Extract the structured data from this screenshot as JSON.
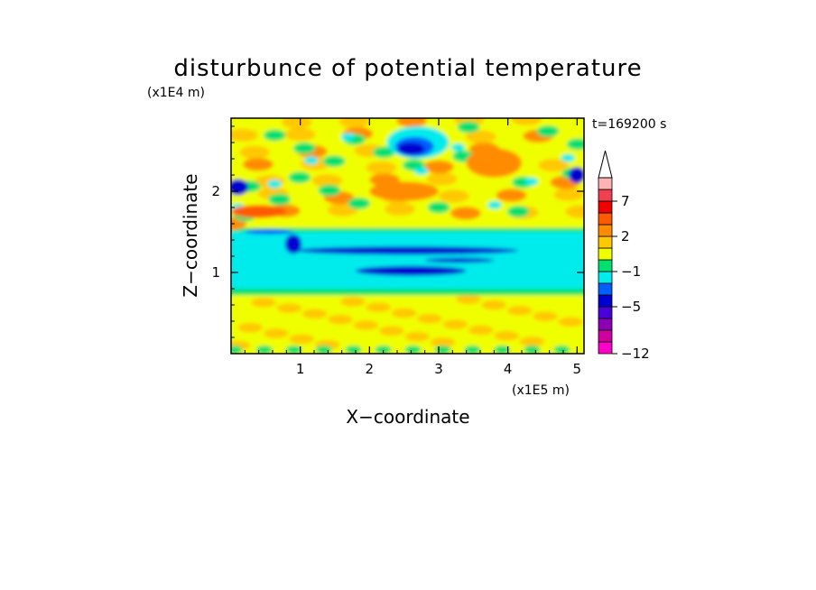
{
  "chart_data": {
    "type": "heatmap",
    "title": "disturbunce of potential temperature",
    "time_label": "t=169200 s",
    "x_axis": {
      "label": "X−coordinate",
      "unit": "(x1E5 m)",
      "range": [
        0,
        5.1
      ],
      "ticks": [
        1,
        2,
        3,
        4,
        5
      ],
      "tick_labels": [
        "1",
        "2",
        "3",
        "4",
        "5"
      ]
    },
    "y_axis": {
      "label": "Z−coordinate",
      "unit": "(x1E4 m)",
      "range": [
        0,
        2.9
      ],
      "ticks": [
        1,
        2
      ],
      "tick_labels": [
        "1",
        "2"
      ]
    },
    "colorbar": {
      "labels": [
        "7",
        "2",
        "−1",
        "−5",
        "−12"
      ],
      "colors": [
        "#ff00c8",
        "#d000a0",
        "#8c00b4",
        "#4a00d8",
        "#0000d0",
        "#0060ff",
        "#00ecec",
        "#00e070",
        "#f0ff00",
        "#ffc800",
        "#ff8c00",
        "#ff5a00",
        "#f00000",
        "#f04050",
        "#ffb4b4",
        "#ffffff"
      ],
      "extend": "max-arrow"
    },
    "field_description": [
      {
        "z_range": [
          0,
          0.8
        ],
        "dominant": "yellow/orange (+0 to +2)"
      },
      {
        "z_range": [
          0.8,
          1.5
        ],
        "dominant": "cyan (−1) with blue core (−5)"
      },
      {
        "z_range": [
          1.5,
          2.9
        ],
        "dominant": "mixed yellow/orange/green with blue cells"
      }
    ]
  }
}
